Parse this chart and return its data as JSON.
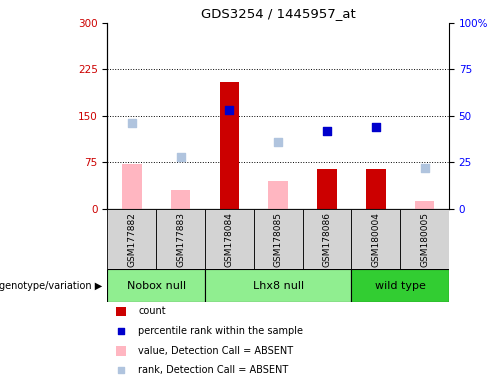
{
  "title": "GDS3254 / 1445957_at",
  "samples": [
    "GSM177882",
    "GSM177883",
    "GSM178084",
    "GSM178085",
    "GSM178086",
    "GSM180004",
    "GSM180005"
  ],
  "groups": [
    {
      "label": "Nobox null",
      "indices": [
        0,
        1
      ],
      "color": "#90EE90"
    },
    {
      "label": "Lhx8 null",
      "indices": [
        2,
        3,
        4
      ],
      "color": "#90EE90"
    },
    {
      "label": "wild type",
      "indices": [
        5,
        6
      ],
      "color": "#32CD32"
    }
  ],
  "count_values": [
    null,
    null,
    205,
    null,
    65,
    65,
    null
  ],
  "count_absent_values": [
    72,
    30,
    null,
    45,
    null,
    null,
    12
  ],
  "percentile_rank": [
    null,
    null,
    53,
    null,
    42,
    44,
    null
  ],
  "percentile_rank_absent": [
    46,
    28,
    null,
    36,
    null,
    null,
    22
  ],
  "ylim_left": [
    0,
    300
  ],
  "ylim_right": [
    0,
    100
  ],
  "yticks_left": [
    0,
    75,
    150,
    225,
    300
  ],
  "yticks_right": [
    0,
    25,
    50,
    75,
    100
  ],
  "grid_values": [
    75,
    150,
    225
  ],
  "bar_color_present": "#cc0000",
  "bar_color_absent": "#ffb6c1",
  "dot_color_present": "#0000cc",
  "dot_color_absent": "#b0c4de",
  "bar_width": 0.4,
  "bg_color_samples": "#d3d3d3",
  "bg_color_group_light": "#90EE90",
  "bg_color_group_dark": "#32CD32",
  "legend_items": [
    {
      "color": "#cc0000",
      "type": "rect",
      "label": "count"
    },
    {
      "color": "#0000cc",
      "type": "square",
      "label": "percentile rank within the sample"
    },
    {
      "color": "#ffb6c1",
      "type": "rect",
      "label": "value, Detection Call = ABSENT"
    },
    {
      "color": "#b0c4de",
      "type": "square",
      "label": "rank, Detection Call = ABSENT"
    }
  ]
}
